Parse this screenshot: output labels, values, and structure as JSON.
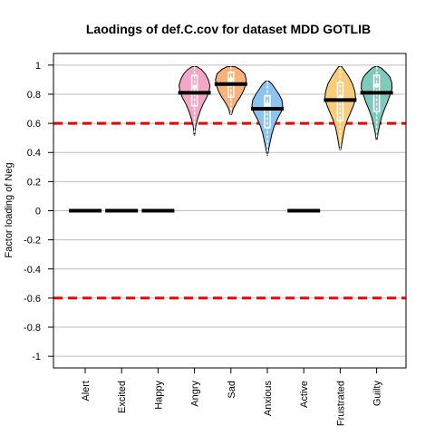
{
  "chart_data": {
    "type": "violin",
    "title": "Laodings of def.C.cov for dataset MDD GOTLIB",
    "xlabel": "",
    "ylabel": "Factor loading of Neg",
    "ylim": [
      -1.08,
      1.08
    ],
    "yticks": [
      -1,
      -0.8,
      -0.6,
      -0.4,
      -0.2,
      0,
      0.2,
      0.4,
      0.6,
      0.8,
      1
    ],
    "ytick_labels": [
      "-1",
      "-0.8",
      "-0.6",
      "-0.4",
      "-0.2",
      "0",
      "0.2",
      "0.4",
      "0.6",
      "0.8",
      "1"
    ],
    "grid": "horizontal",
    "reference_lines": [
      {
        "value": 0.6,
        "color": "#ee0000",
        "style": "dashed"
      },
      {
        "value": -0.6,
        "color": "#ee0000",
        "style": "dashed"
      }
    ],
    "categories": [
      "Alert",
      "Excited",
      "Happy",
      "Angry",
      "Sad",
      "Anxious",
      "Active",
      "Frustrated",
      "Guilty"
    ],
    "items": [
      {
        "name": "Alert",
        "median": 0.0,
        "violin": false
      },
      {
        "name": "Excited",
        "median": 0.0,
        "violin": false
      },
      {
        "name": "Happy",
        "median": 0.0,
        "violin": false
      },
      {
        "name": "Angry",
        "median": 0.81,
        "violin": true,
        "min": 0.52,
        "max": 0.99,
        "q1": 0.72,
        "q3": 0.93,
        "mode": 0.85,
        "color": "#f4a6c6",
        "profile": [
          [
            0.52,
            0.02
          ],
          [
            0.58,
            0.08
          ],
          [
            0.63,
            0.2
          ],
          [
            0.68,
            0.35
          ],
          [
            0.73,
            0.55
          ],
          [
            0.78,
            0.8
          ],
          [
            0.82,
            0.95
          ],
          [
            0.86,
            1.0
          ],
          [
            0.9,
            0.9
          ],
          [
            0.94,
            0.7
          ],
          [
            0.97,
            0.45
          ],
          [
            0.99,
            0.15
          ]
        ]
      },
      {
        "name": "Sad",
        "median": 0.87,
        "violin": true,
        "min": 0.66,
        "max": 0.99,
        "q1": 0.78,
        "q3": 0.95,
        "mode": 0.9,
        "color": "#f8b27a",
        "profile": [
          [
            0.66,
            0.04
          ],
          [
            0.7,
            0.15
          ],
          [
            0.74,
            0.35
          ],
          [
            0.78,
            0.6
          ],
          [
            0.82,
            0.8
          ],
          [
            0.86,
            0.95
          ],
          [
            0.9,
            1.0
          ],
          [
            0.94,
            0.9
          ],
          [
            0.97,
            0.6
          ],
          [
            0.99,
            0.25
          ]
        ]
      },
      {
        "name": "Anxious",
        "median": 0.7,
        "violin": true,
        "min": 0.38,
        "max": 0.89,
        "q1": 0.57,
        "q3": 0.79,
        "mode": 0.73,
        "color": "#8cc4ef",
        "profile": [
          [
            0.38,
            0.02
          ],
          [
            0.43,
            0.1
          ],
          [
            0.48,
            0.2
          ],
          [
            0.53,
            0.3
          ],
          [
            0.58,
            0.45
          ],
          [
            0.63,
            0.65
          ],
          [
            0.68,
            0.9
          ],
          [
            0.72,
            1.0
          ],
          [
            0.76,
            0.95
          ],
          [
            0.8,
            0.75
          ],
          [
            0.84,
            0.5
          ],
          [
            0.87,
            0.3
          ],
          [
            0.89,
            0.1
          ]
        ]
      },
      {
        "name": "Active",
        "median": 0.0,
        "violin": false
      },
      {
        "name": "Frustrated",
        "median": 0.76,
        "violin": true,
        "min": 0.42,
        "max": 0.99,
        "q1": 0.62,
        "q3": 0.88,
        "mode": 0.78,
        "color": "#f9cc7a",
        "profile": [
          [
            0.42,
            0.04
          ],
          [
            0.47,
            0.12
          ],
          [
            0.52,
            0.2
          ],
          [
            0.57,
            0.3
          ],
          [
            0.62,
            0.45
          ],
          [
            0.67,
            0.65
          ],
          [
            0.72,
            0.85
          ],
          [
            0.77,
            1.0
          ],
          [
            0.82,
            0.95
          ],
          [
            0.87,
            0.8
          ],
          [
            0.92,
            0.55
          ],
          [
            0.96,
            0.3
          ],
          [
            0.99,
            0.1
          ]
        ]
      },
      {
        "name": "Guilty",
        "median": 0.81,
        "violin": true,
        "min": 0.49,
        "max": 0.99,
        "q1": 0.68,
        "q3": 0.93,
        "mode": 0.86,
        "color": "#7fcabd",
        "profile": [
          [
            0.49,
            0.03
          ],
          [
            0.54,
            0.1
          ],
          [
            0.59,
            0.2
          ],
          [
            0.64,
            0.32
          ],
          [
            0.69,
            0.48
          ],
          [
            0.74,
            0.68
          ],
          [
            0.79,
            0.85
          ],
          [
            0.84,
            1.0
          ],
          [
            0.88,
            0.98
          ],
          [
            0.92,
            0.85
          ],
          [
            0.95,
            0.6
          ],
          [
            0.98,
            0.3
          ],
          [
            0.99,
            0.1
          ]
        ]
      }
    ]
  }
}
